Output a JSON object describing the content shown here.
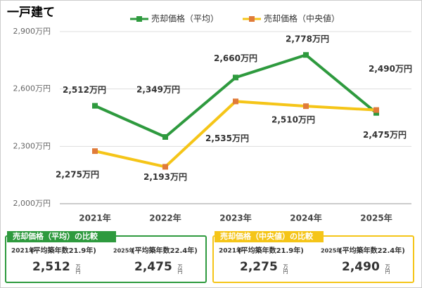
{
  "chart_data": {
    "type": "line",
    "title": "一戸建て",
    "categories": [
      "2021年",
      "2022年",
      "2023年",
      "2024年",
      "2025年"
    ],
    "series": [
      {
        "name": "売却価格（平均）",
        "color": "#2e9a3e",
        "values": [
          2512,
          2349,
          2660,
          2778,
          2475
        ],
        "value_labels": [
          "2,512万円",
          "2,349万円",
          "2,660万円",
          "2,778万円",
          "2,475万円"
        ]
      },
      {
        "name": "売却価格（中央値）",
        "color": "#f5c518",
        "values": [
          2275,
          2193,
          2535,
          2510,
          2490
        ],
        "value_labels": [
          "2,275万円",
          "2,193万円",
          "2,535万円",
          "2,510万円",
          "2,490万円"
        ]
      }
    ],
    "ylim": [
      2000,
      2900
    ],
    "yticks": [
      {
        "value": 2000,
        "label": "2,000万円"
      },
      {
        "value": 2300,
        "label": "2,300万円"
      },
      {
        "value": 2600,
        "label": "2,600万円"
      },
      {
        "value": 2900,
        "label": "2,900万円"
      }
    ],
    "grid": true
  },
  "comparisons": [
    {
      "title": "売却価格（平均）の比較",
      "items": [
        {
          "year": "2021年",
          "detail": "(平均築年数21.9年)",
          "value": "2,512",
          "unit": "万円"
        },
        {
          "year": "2025年",
          "detail": "(平均築年数22.4年)",
          "value": "2,475",
          "unit": "万円"
        }
      ]
    },
    {
      "title": "売却価格（中央値）の比較",
      "items": [
        {
          "year": "2021年",
          "detail": "(平均築年数21.9年)",
          "value": "2,275",
          "unit": "万円"
        },
        {
          "year": "2025年",
          "detail": "(平均築年数22.4年)",
          "value": "2,490",
          "unit": "万円"
        }
      ]
    }
  ]
}
